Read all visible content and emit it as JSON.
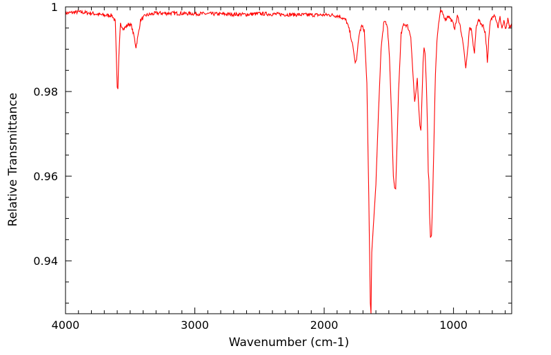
{
  "chart_data": {
    "type": "line",
    "title": "",
    "xlabel": "Wavenumber (cm-1)",
    "ylabel": "Relative Transmittance",
    "xlim": [
      4000,
      550
    ],
    "ylim": [
      0.9275,
      1.0
    ],
    "x_reversed": true,
    "x_major_ticks": [
      4000,
      3000,
      2000,
      1000
    ],
    "x_tick_labels": [
      "4000",
      "3000",
      "2000",
      "1000"
    ],
    "y_major_ticks": [
      0.94,
      0.96,
      0.98,
      1.0
    ],
    "y_tick_labels": [
      "0.94",
      "0.96",
      "0.98",
      "1"
    ],
    "grid": false,
    "legend": "none",
    "series": [
      {
        "color": "#ff0000",
        "points": [
          [
            4000,
            0.9985
          ],
          [
            3900,
            0.9988
          ],
          [
            3800,
            0.9985
          ],
          [
            3700,
            0.998
          ],
          [
            3640,
            0.998
          ],
          [
            3615,
            0.9965
          ],
          [
            3600,
            0.981
          ],
          [
            3595,
            0.9806
          ],
          [
            3588,
            0.988
          ],
          [
            3575,
            0.996
          ],
          [
            3550,
            0.9948
          ],
          [
            3510,
            0.996
          ],
          [
            3490,
            0.9955
          ],
          [
            3470,
            0.993
          ],
          [
            3455,
            0.9905
          ],
          [
            3440,
            0.993
          ],
          [
            3420,
            0.9968
          ],
          [
            3380,
            0.998
          ],
          [
            3300,
            0.9985
          ],
          [
            3200,
            0.9985
          ],
          [
            3000,
            0.9984
          ],
          [
            2800,
            0.9983
          ],
          [
            2600,
            0.9982
          ],
          [
            2500,
            0.9984
          ],
          [
            2300,
            0.9982
          ],
          [
            2100,
            0.9981
          ],
          [
            1950,
            0.9981
          ],
          [
            1880,
            0.9978
          ],
          [
            1830,
            0.9968
          ],
          [
            1800,
            0.994
          ],
          [
            1775,
            0.99
          ],
          [
            1760,
            0.9868
          ],
          [
            1750,
            0.9875
          ],
          [
            1730,
            0.9935
          ],
          [
            1710,
            0.9955
          ],
          [
            1690,
            0.9945
          ],
          [
            1670,
            0.982
          ],
          [
            1655,
            0.955
          ],
          [
            1643,
            0.93
          ],
          [
            1638,
            0.9275
          ],
          [
            1632,
            0.942
          ],
          [
            1620,
            0.948
          ],
          [
            1600,
            0.958
          ],
          [
            1580,
            0.975
          ],
          [
            1560,
            0.99
          ],
          [
            1540,
            0.996
          ],
          [
            1525,
            0.9965
          ],
          [
            1510,
            0.995
          ],
          [
            1495,
            0.988
          ],
          [
            1480,
            0.975
          ],
          [
            1465,
            0.96
          ],
          [
            1455,
            0.9572
          ],
          [
            1447,
            0.957
          ],
          [
            1440,
            0.964
          ],
          [
            1425,
            0.98
          ],
          [
            1405,
            0.9935
          ],
          [
            1385,
            0.996
          ],
          [
            1355,
            0.9955
          ],
          [
            1330,
            0.993
          ],
          [
            1315,
            0.985
          ],
          [
            1300,
            0.9776
          ],
          [
            1290,
            0.98
          ],
          [
            1280,
            0.9832
          ],
          [
            1272,
            0.978
          ],
          [
            1260,
            0.972
          ],
          [
            1252,
            0.9708
          ],
          [
            1242,
            0.98
          ],
          [
            1235,
            0.987
          ],
          [
            1228,
            0.9905
          ],
          [
            1220,
            0.989
          ],
          [
            1210,
            0.982
          ],
          [
            1200,
            0.97
          ],
          [
            1195,
            0.961
          ],
          [
            1190,
            0.959
          ],
          [
            1185,
            0.951
          ],
          [
            1178,
            0.9455
          ],
          [
            1170,
            0.946
          ],
          [
            1160,
            0.956
          ],
          [
            1150,
            0.97
          ],
          [
            1140,
            0.984
          ],
          [
            1128,
            0.992
          ],
          [
            1115,
            0.996
          ],
          [
            1100,
            0.999
          ],
          [
            1085,
            0.9985
          ],
          [
            1060,
            0.997
          ],
          [
            1040,
            0.998
          ],
          [
            1010,
            0.9965
          ],
          [
            990,
            0.995
          ],
          [
            970,
            0.9978
          ],
          [
            955,
            0.9965
          ],
          [
            940,
            0.994
          ],
          [
            920,
            0.99
          ],
          [
            905,
            0.9855
          ],
          [
            890,
            0.99
          ],
          [
            875,
            0.995
          ],
          [
            860,
            0.9945
          ],
          [
            848,
            0.991
          ],
          [
            838,
            0.989
          ],
          [
            825,
            0.995
          ],
          [
            810,
            0.997
          ],
          [
            790,
            0.9962
          ],
          [
            770,
            0.9955
          ],
          [
            755,
            0.994
          ],
          [
            745,
            0.9905
          ],
          [
            738,
            0.9868
          ],
          [
            728,
            0.992
          ],
          [
            715,
            0.9965
          ],
          [
            700,
            0.9975
          ],
          [
            685,
            0.9985
          ],
          [
            670,
            0.997
          ],
          [
            655,
            0.9952
          ],
          [
            640,
            0.9975
          ],
          [
            625,
            0.995
          ],
          [
            610,
            0.9965
          ],
          [
            595,
            0.9945
          ],
          [
            580,
            0.997
          ],
          [
            565,
            0.9948
          ],
          [
            552,
            0.996
          ]
        ]
      }
    ]
  }
}
